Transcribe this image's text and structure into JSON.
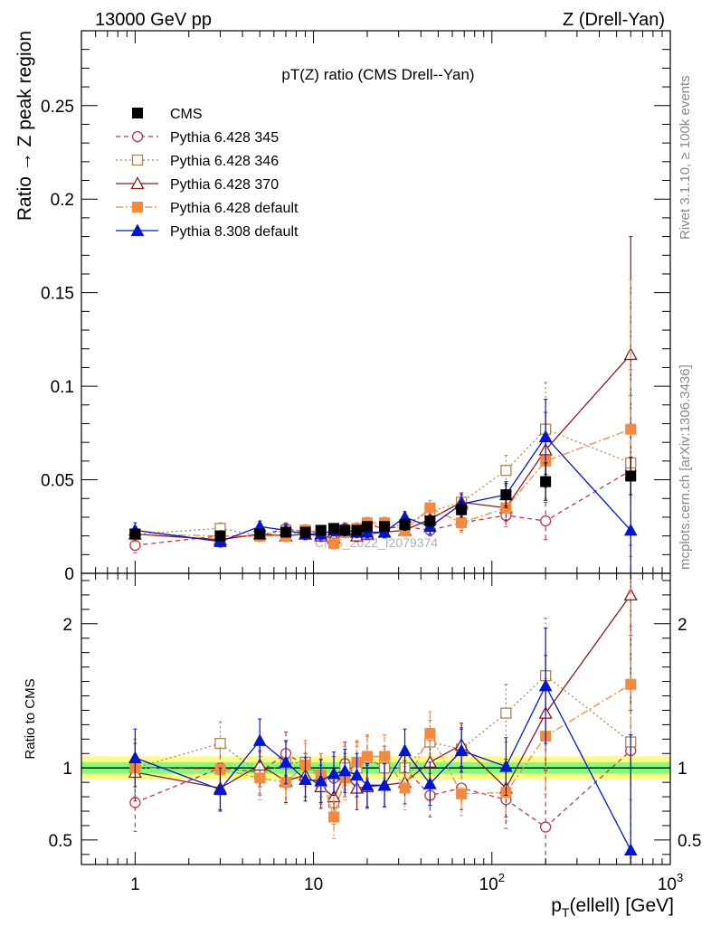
{
  "header": {
    "left": "13000 GeV pp",
    "right": "Z (Drell-Yan)",
    "side_top": "Rivet 3.1.10, ≥ 100k events",
    "side_bottom": "mcplots.cern.ch [arXiv:1306.3436]",
    "watermark": "CMS_2022_I2079374"
  },
  "colors": {
    "cms": "#000000",
    "p345": "#b5394d",
    "p346": "#a8884e",
    "p370": "#8b1a1a",
    "pdef": "#f58a3c",
    "p8": "#0015d6",
    "band_inner": "#7fff7f",
    "band_outer": "#fffc7f"
  },
  "chart_data": [
    {
      "type": "scatter",
      "title": "pT(Z) ratio (CMS Drell--Yan)",
      "xlabel": "p_T(ellell) [GeV]",
      "ylabel": "Ratio → Z peak region",
      "xscale": "log",
      "xlim": [
        0.5,
        1000
      ],
      "ylim": [
        0,
        0.29
      ],
      "y_ticks": [
        "0",
        "0.05",
        "0.1",
        "0.15",
        "0.2",
        "0.25"
      ],
      "legend_position": "top-left",
      "x": [
        1,
        3,
        5,
        7,
        9,
        11,
        13,
        15,
        17.5,
        20,
        25,
        32.5,
        45,
        67.5,
        120,
        200,
        600
      ],
      "series": [
        {
          "name": "CMS",
          "key": "cms",
          "marker": "square-filled",
          "line": "none",
          "values": [
            0.021,
            0.02,
            0.021,
            0.022,
            0.022,
            0.023,
            0.024,
            0.023,
            0.023,
            0.025,
            0.025,
            0.026,
            0.028,
            0.034,
            0.042,
            0.049,
            0.052
          ],
          "errors": [
            0.002,
            0.002,
            0.002,
            0.002,
            0.002,
            0.002,
            0.002,
            0.002,
            0.002,
            0.002,
            0.002,
            0.003,
            0.003,
            0.004,
            0.006,
            0.01,
            0.01
          ]
        },
        {
          "name": "Pythia 6.428 345",
          "key": "p345",
          "marker": "circle-open",
          "line": "dashed",
          "values": [
            0.015,
            0.02,
            0.02,
            0.024,
            0.022,
            0.022,
            0.021,
            0.024,
            0.024,
            0.026,
            0.024,
            0.025,
            0.023,
            0.027,
            0.031,
            0.028,
            0.055
          ],
          "errors": [
            0.004,
            0.003,
            0.003,
            0.003,
            0.003,
            0.003,
            0.003,
            0.003,
            0.003,
            0.003,
            0.003,
            0.003,
            0.003,
            0.004,
            0.006,
            0.01,
            0.04
          ]
        },
        {
          "name": "Pythia 6.428 346",
          "key": "p346",
          "marker": "square-open",
          "line": "dotted",
          "values": [
            0.021,
            0.024,
            0.02,
            0.023,
            0.023,
            0.021,
            0.02,
            0.023,
            0.023,
            0.026,
            0.025,
            0.026,
            0.033,
            0.038,
            0.055,
            0.077,
            0.059
          ],
          "errors": [
            0.004,
            0.003,
            0.003,
            0.003,
            0.003,
            0.003,
            0.003,
            0.003,
            0.003,
            0.003,
            0.003,
            0.003,
            0.004,
            0.005,
            0.008,
            0.025,
            0.05
          ]
        },
        {
          "name": "Pythia 6.428 370",
          "key": "p370",
          "marker": "triangle-open",
          "line": "solid",
          "values": [
            0.021,
            0.018,
            0.021,
            0.02,
            0.021,
            0.02,
            0.019,
            0.022,
            0.02,
            0.021,
            0.022,
            0.023,
            0.029,
            0.038,
            0.035,
            0.066,
            0.117
          ],
          "errors": [
            0.004,
            0.003,
            0.003,
            0.003,
            0.003,
            0.003,
            0.003,
            0.003,
            0.003,
            0.003,
            0.003,
            0.003,
            0.004,
            0.005,
            0.007,
            0.02,
            0.063
          ]
        },
        {
          "name": "Pythia 6.428 default",
          "key": "pdef",
          "marker": "square-filled",
          "line": "dashdot",
          "values": [
            0.021,
            0.02,
            0.02,
            0.02,
            0.023,
            0.022,
            0.016,
            0.022,
            0.024,
            0.027,
            0.027,
            0.023,
            0.035,
            0.027,
            0.035,
            0.06,
            0.077
          ],
          "errors": [
            0.004,
            0.003,
            0.003,
            0.003,
            0.003,
            0.003,
            0.003,
            0.003,
            0.003,
            0.003,
            0.003,
            0.003,
            0.004,
            0.005,
            0.008,
            0.02,
            0.08
          ]
        },
        {
          "name": "Pythia 8.308 default",
          "key": "p8",
          "marker": "triangle-filled",
          "line": "solid",
          "values": [
            0.023,
            0.017,
            0.025,
            0.023,
            0.021,
            0.021,
            0.023,
            0.023,
            0.022,
            0.022,
            0.022,
            0.03,
            0.025,
            0.037,
            0.042,
            0.073,
            0.023
          ],
          "errors": [
            0.004,
            0.003,
            0.003,
            0.003,
            0.003,
            0.003,
            0.003,
            0.003,
            0.003,
            0.003,
            0.003,
            0.003,
            0.004,
            0.005,
            0.007,
            0.02,
            0.03
          ]
        }
      ]
    },
    {
      "type": "scatter",
      "title": "",
      "xlabel": "p_T(ellell) [GeV]",
      "ylabel": "Ratio to CMS",
      "xscale": "log",
      "xlim": [
        0.5,
        1000
      ],
      "ylim": [
        0.33,
        2.35
      ],
      "y_ticks": [
        "0.5",
        "1",
        "2"
      ],
      "x_ticks": [
        "1",
        "10",
        "10^2",
        "10^3"
      ],
      "x": [
        1,
        3,
        5,
        7,
        9,
        11,
        13,
        15,
        17.5,
        20,
        25,
        32.5,
        45,
        67.5,
        120,
        200,
        600
      ],
      "band": {
        "inner": 0.04,
        "outer": 0.08
      },
      "series": [
        {
          "key": "p345",
          "values": [
            0.76,
            1.0,
            0.97,
            1.1,
            1.02,
            0.95,
            0.93,
            1.03,
            1.03,
            1.07,
            1.0,
            1.0,
            0.81,
            0.86,
            0.78,
            0.59,
            1.12
          ],
          "errors": [
            0.2,
            0.15,
            0.15,
            0.15,
            0.15,
            0.15,
            0.15,
            0.15,
            0.15,
            0.15,
            0.15,
            0.15,
            0.15,
            0.15,
            0.2,
            0.4,
            0.8
          ]
        },
        {
          "key": "p346",
          "values": [
            1.0,
            1.17,
            0.96,
            1.03,
            1.04,
            0.9,
            0.76,
            1.0,
            1.0,
            1.07,
            1.0,
            1.0,
            1.18,
            1.13,
            1.38,
            1.64,
            1.18
          ],
          "errors": [
            0.2,
            0.15,
            0.15,
            0.15,
            0.15,
            0.15,
            0.15,
            0.15,
            0.15,
            0.15,
            0.15,
            0.15,
            0.15,
            0.15,
            0.2,
            0.4,
            0.8
          ]
        },
        {
          "key": "p370",
          "values": [
            0.97,
            0.86,
            1.02,
            0.91,
            0.95,
            0.87,
            0.8,
            0.95,
            0.86,
            0.87,
            0.88,
            0.9,
            1.04,
            1.16,
            0.86,
            1.38,
            2.2
          ],
          "errors": [
            0.2,
            0.15,
            0.15,
            0.15,
            0.15,
            0.15,
            0.15,
            0.15,
            0.15,
            0.15,
            0.15,
            0.15,
            0.15,
            0.15,
            0.2,
            0.4,
            0.8
          ]
        },
        {
          "key": "pdef",
          "values": [
            1.0,
            0.99,
            0.93,
            0.9,
            1.02,
            0.95,
            0.66,
            0.93,
            1.04,
            1.08,
            1.08,
            0.86,
            1.24,
            0.82,
            0.83,
            1.22,
            1.58
          ],
          "errors": [
            0.2,
            0.15,
            0.15,
            0.15,
            0.15,
            0.15,
            0.15,
            0.15,
            0.15,
            0.15,
            0.15,
            0.15,
            0.15,
            0.15,
            0.2,
            0.4,
            0.8
          ]
        },
        {
          "key": "p8",
          "values": [
            1.07,
            0.85,
            1.19,
            1.04,
            0.92,
            0.91,
            0.96,
            0.98,
            0.95,
            0.88,
            0.88,
            1.12,
            0.89,
            1.12,
            1.01,
            1.57,
            0.43
          ],
          "errors": [
            0.2,
            0.15,
            0.15,
            0.15,
            0.15,
            0.15,
            0.15,
            0.15,
            0.15,
            0.15,
            0.15,
            0.15,
            0.15,
            0.15,
            0.2,
            0.4,
            0.8
          ]
        }
      ]
    }
  ]
}
